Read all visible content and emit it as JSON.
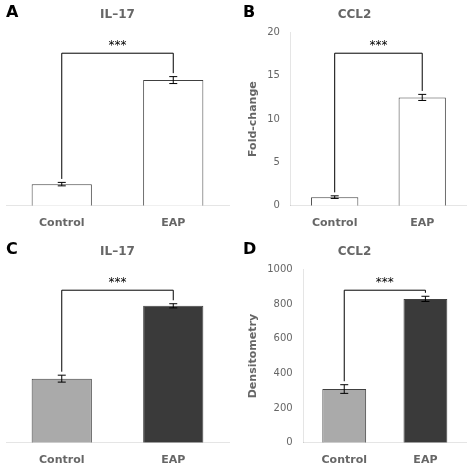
{
  "chart_data": [
    {
      "type": "bar",
      "title": "IL–17",
      "panel_label": "A",
      "categories": [
        "Control",
        "EAP"
      ],
      "values": [
        2.5,
        14.5
      ],
      "errors": [
        0.2,
        0.4
      ],
      "colors": [
        "white",
        "white"
      ],
      "annotation": "***",
      "ylim": [
        0,
        20
      ],
      "tick_labels": "x",
      "grid": false
    },
    {
      "type": "bar",
      "title": "CCL2",
      "panel_label": "B",
      "categories": [
        "Control",
        "EAP"
      ],
      "values": [
        1.0,
        12.5
      ],
      "errors": [
        0.15,
        0.35
      ],
      "colors": [
        "white",
        "white"
      ],
      "annotation": "***",
      "ylabel": "Fold-change",
      "ylim": [
        0,
        20
      ],
      "yticks": [
        0,
        5,
        10,
        15,
        20
      ],
      "grid": false
    },
    {
      "type": "bar",
      "title": "IL–17",
      "panel_label": "C",
      "categories": [
        "Control",
        "EAP"
      ],
      "values": [
        370,
        790
      ],
      "errors": [
        20,
        12
      ],
      "colors": [
        "#aaaaaa",
        "#3a3a3a"
      ],
      "annotation": "***",
      "ylim": [
        0,
        1000
      ],
      "tick_labels": "x",
      "grid": false
    },
    {
      "type": "bar",
      "title": "CCL2",
      "panel_label": "D",
      "categories": [
        "Control",
        "EAP"
      ],
      "values": [
        310,
        830
      ],
      "errors": [
        25,
        15
      ],
      "colors": [
        "#aaaaaa",
        "#3a3a3a"
      ],
      "annotation": "***",
      "ylabel": "Densitometry",
      "ylim": [
        0,
        1000
      ],
      "yticks": [
        0,
        200,
        400,
        600,
        800,
        1000
      ],
      "grid": false
    }
  ]
}
